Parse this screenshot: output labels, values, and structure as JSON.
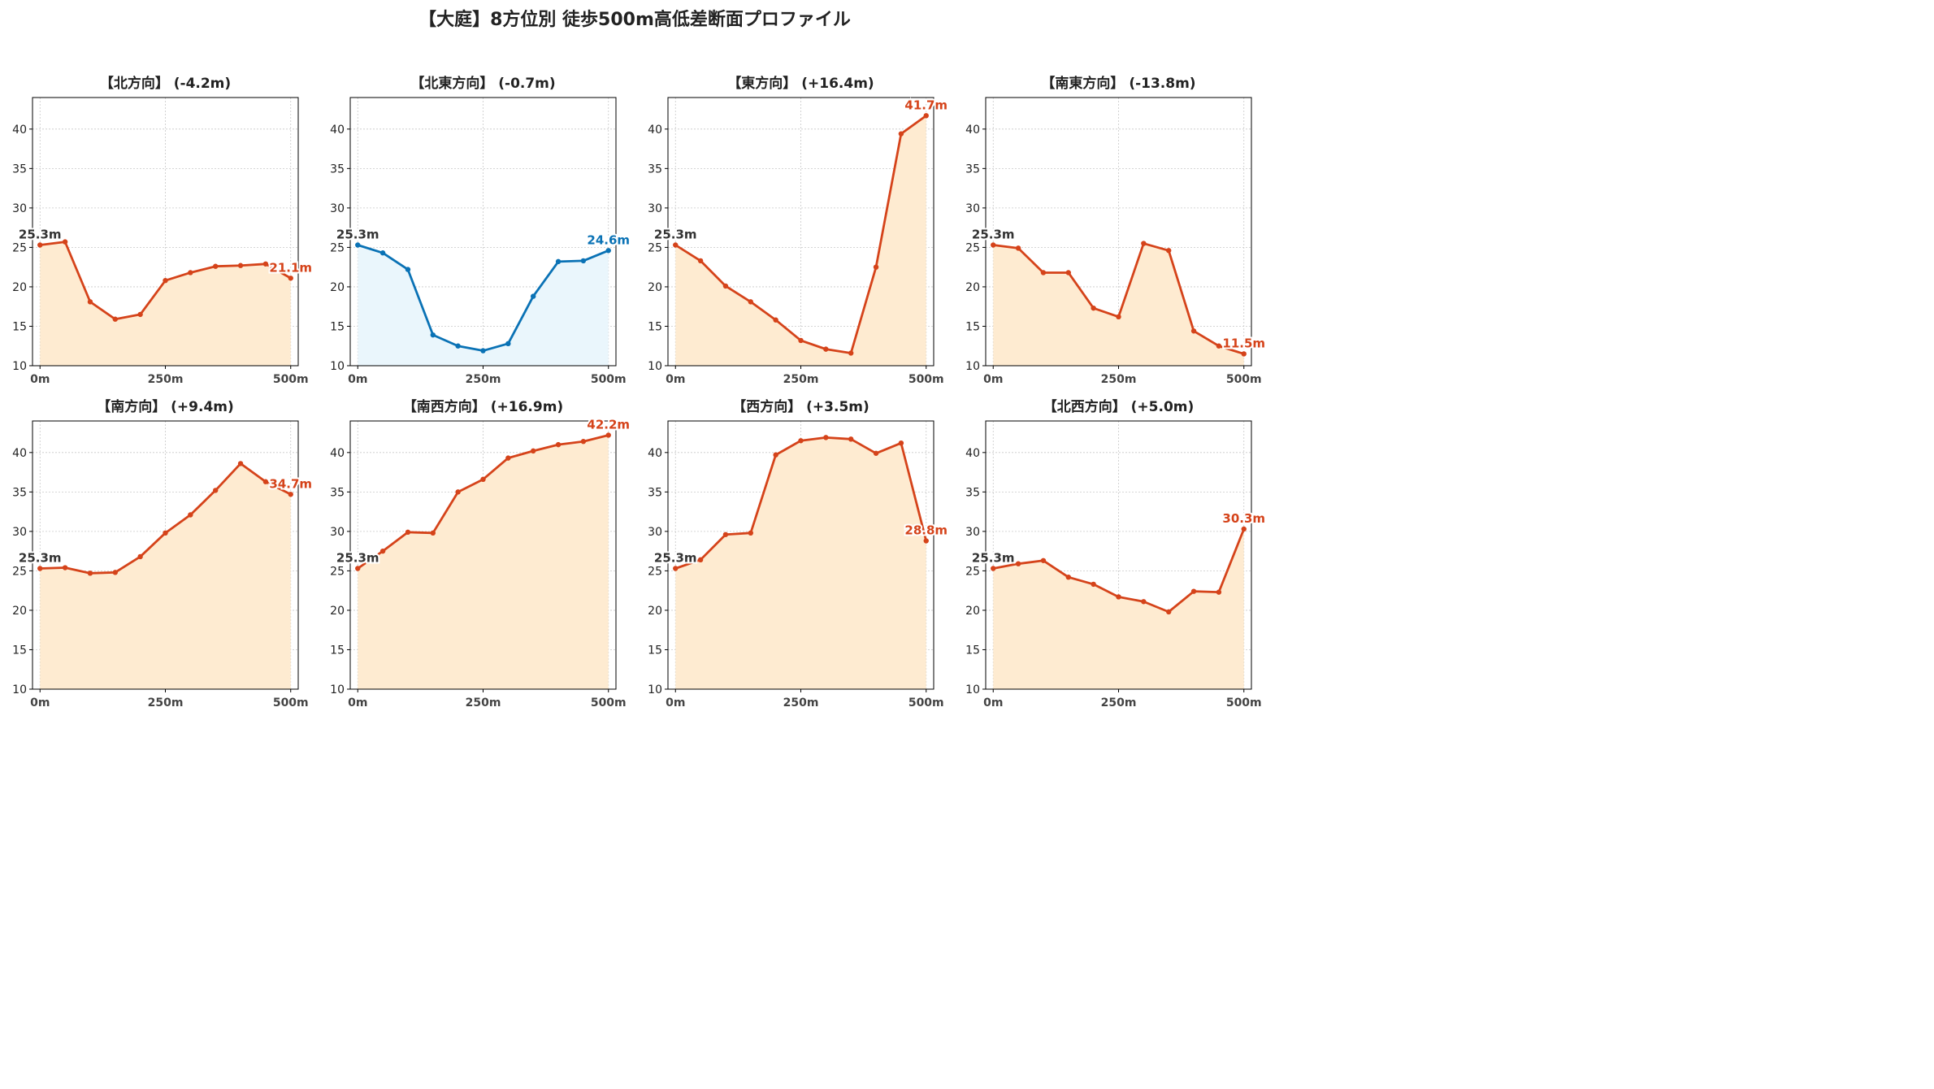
{
  "title": "【大庭】8方位別 徒歩500m高低差断面プロファイル",
  "colors": {
    "descend_line": "#d5431a",
    "descend_fill": "#feebd1",
    "ascend_line": "#0a72b5",
    "ascend_fill": "#eaf6fc",
    "start_label": "#333333",
    "axis": "#000000",
    "grid": "#c8c8c8",
    "text": "#222222"
  },
  "chart_data": [
    {
      "type": "area",
      "title": "【北方向】 (-4.2m)",
      "x": [
        0,
        50,
        100,
        150,
        200,
        250,
        300,
        350,
        400,
        450,
        500
      ],
      "series": [
        {
          "values": [
            25.3,
            25.7,
            18.1,
            15.9,
            16.5,
            20.8,
            21.8,
            22.6,
            22.7,
            22.9,
            21.1
          ]
        }
      ],
      "xticks": [
        "0m",
        "250m",
        "500m"
      ],
      "yticks": [
        10,
        15,
        20,
        25,
        30,
        35,
        40
      ],
      "ylim": [
        10,
        44
      ],
      "xlim": [
        -15,
        515
      ],
      "start_label": "25.3m",
      "end_label": "21.1m",
      "color": "descend",
      "grid": true
    },
    {
      "type": "area",
      "title": "【北東方向】 (-0.7m)",
      "x": [
        0,
        50,
        100,
        150,
        200,
        250,
        300,
        350,
        400,
        450,
        500
      ],
      "series": [
        {
          "values": [
            25.3,
            24.3,
            22.2,
            13.9,
            12.5,
            11.9,
            12.8,
            18.8,
            23.2,
            23.3,
            24.6
          ]
        }
      ],
      "xticks": [
        "0m",
        "250m",
        "500m"
      ],
      "yticks": [
        10,
        15,
        20,
        25,
        30,
        35,
        40
      ],
      "ylim": [
        10,
        44
      ],
      "xlim": [
        -15,
        515
      ],
      "start_label": "25.3m",
      "end_label": "24.6m",
      "color": "ascend",
      "grid": true
    },
    {
      "type": "area",
      "title": "【東方向】 (+16.4m)",
      "x": [
        0,
        50,
        100,
        150,
        200,
        250,
        300,
        350,
        400,
        450,
        500
      ],
      "series": [
        {
          "values": [
            25.3,
            23.3,
            20.1,
            18.1,
            15.8,
            13.2,
            12.1,
            11.6,
            22.5,
            39.4,
            41.7
          ]
        }
      ],
      "xticks": [
        "0m",
        "250m",
        "500m"
      ],
      "yticks": [
        10,
        15,
        20,
        25,
        30,
        35,
        40
      ],
      "ylim": [
        10,
        44
      ],
      "xlim": [
        -15,
        515
      ],
      "start_label": "25.3m",
      "end_label": "41.7m",
      "color": "descend",
      "grid": true
    },
    {
      "type": "area",
      "title": "【南東方向】 (-13.8m)",
      "x": [
        0,
        50,
        100,
        150,
        200,
        250,
        300,
        350,
        400,
        450,
        500
      ],
      "series": [
        {
          "values": [
            25.3,
            24.9,
            21.8,
            21.8,
            17.3,
            16.2,
            25.5,
            24.6,
            14.4,
            12.5,
            11.5
          ]
        }
      ],
      "xticks": [
        "0m",
        "250m",
        "500m"
      ],
      "yticks": [
        10,
        15,
        20,
        25,
        30,
        35,
        40
      ],
      "ylim": [
        10,
        44
      ],
      "xlim": [
        -15,
        515
      ],
      "start_label": "25.3m",
      "end_label": "11.5m",
      "color": "descend",
      "grid": true
    },
    {
      "type": "area",
      "title": "【南方向】 (+9.4m)",
      "x": [
        0,
        50,
        100,
        150,
        200,
        250,
        300,
        350,
        400,
        450,
        500
      ],
      "series": [
        {
          "values": [
            25.3,
            25.4,
            24.7,
            24.8,
            26.8,
            29.8,
            32.1,
            35.2,
            38.6,
            36.3,
            34.7
          ]
        }
      ],
      "xticks": [
        "0m",
        "250m",
        "500m"
      ],
      "yticks": [
        10,
        15,
        20,
        25,
        30,
        35,
        40
      ],
      "ylim": [
        10,
        44
      ],
      "xlim": [
        -15,
        515
      ],
      "start_label": "25.3m",
      "end_label": "34.7m",
      "color": "descend",
      "grid": true
    },
    {
      "type": "area",
      "title": "【南西方向】 (+16.9m)",
      "x": [
        0,
        50,
        100,
        150,
        200,
        250,
        300,
        350,
        400,
        450,
        500
      ],
      "series": [
        {
          "values": [
            25.3,
            27.5,
            29.9,
            29.8,
            35.0,
            36.6,
            39.3,
            40.2,
            41.0,
            41.4,
            42.2
          ]
        }
      ],
      "xticks": [
        "0m",
        "250m",
        "500m"
      ],
      "yticks": [
        10,
        15,
        20,
        25,
        30,
        35,
        40
      ],
      "ylim": [
        10,
        44
      ],
      "xlim": [
        -15,
        515
      ],
      "start_label": "25.3m",
      "end_label": "42.2m",
      "color": "descend",
      "grid": true
    },
    {
      "type": "area",
      "title": "【西方向】 (+3.5m)",
      "x": [
        0,
        50,
        100,
        150,
        200,
        250,
        300,
        350,
        400,
        450,
        500
      ],
      "series": [
        {
          "values": [
            25.3,
            26.4,
            29.6,
            29.8,
            39.7,
            41.5,
            41.9,
            41.7,
            39.9,
            41.2,
            28.8
          ]
        }
      ],
      "xticks": [
        "0m",
        "250m",
        "500m"
      ],
      "yticks": [
        10,
        15,
        20,
        25,
        30,
        35,
        40
      ],
      "ylim": [
        10,
        44
      ],
      "xlim": [
        -15,
        515
      ],
      "start_label": "25.3m",
      "end_label": "28.8m",
      "color": "descend",
      "grid": true
    },
    {
      "type": "area",
      "title": "【北西方向】 (+5.0m)",
      "x": [
        0,
        50,
        100,
        150,
        200,
        250,
        300,
        350,
        400,
        450,
        500
      ],
      "series": [
        {
          "values": [
            25.3,
            25.9,
            26.3,
            24.2,
            23.3,
            21.7,
            21.1,
            19.8,
            22.4,
            22.3,
            30.3
          ]
        }
      ],
      "xticks": [
        "0m",
        "250m",
        "500m"
      ],
      "yticks": [
        10,
        15,
        20,
        25,
        30,
        35,
        40
      ],
      "ylim": [
        10,
        44
      ],
      "xlim": [
        -15,
        515
      ],
      "start_label": "25.3m",
      "end_label": "30.3m",
      "color": "descend",
      "grid": true
    }
  ]
}
